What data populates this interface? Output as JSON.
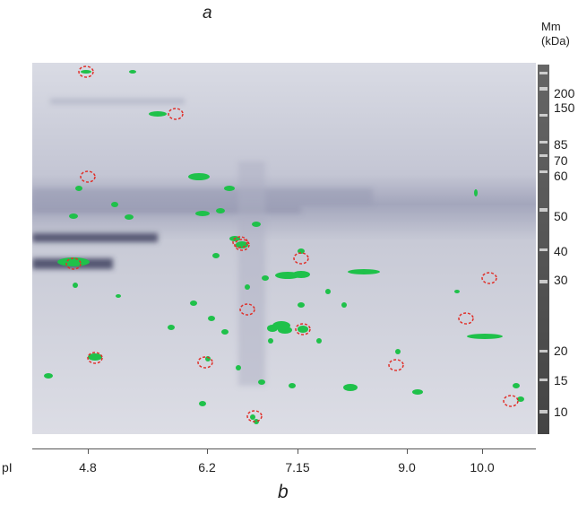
{
  "panel_labels": {
    "top": "a",
    "bottom": "b"
  },
  "mm_axis": {
    "title_line1": "Mm",
    "title_line2": "(kDa)",
    "ticks": [
      "200",
      "150",
      "85",
      "70",
      "60",
      "50",
      "40",
      "30",
      "20",
      "15",
      "10"
    ]
  },
  "pi_axis": {
    "label": "pI",
    "ticks": [
      "4.8",
      "6.2",
      "7.15",
      "9.0",
      "10.0"
    ]
  },
  "colors": {
    "spot": "#1fc14a",
    "circle": "#e0302a",
    "gel_background": "#d9dbe4",
    "smear": "#4a4d6a"
  }
}
